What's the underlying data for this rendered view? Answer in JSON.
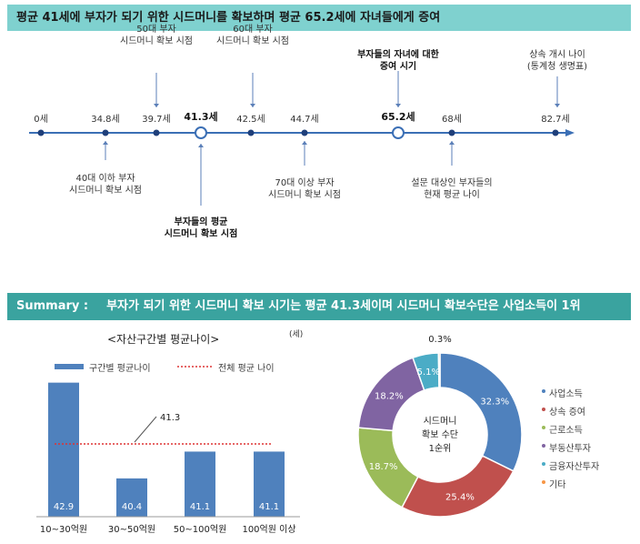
{
  "banner_top": "평균 41세에 부자가 되기 위한 시드머니를 확보하며 평균 65.2세에 자녀들에게 증여",
  "banner_summary": {
    "label": "Summary :",
    "text": "부자가 되기 위한 시드머니 확보 시기는 평균 41.3세이며 시드머니 확보수단은 사업소득이 1위"
  },
  "timeline": {
    "ticks": [
      {
        "label": "0세",
        "value": 0
      },
      {
        "label": "34.8세",
        "value": 34.8
      },
      {
        "label": "39.7세",
        "value": 39.7
      },
      {
        "label": "41.3세",
        "value": 41.3,
        "highlight": true
      },
      {
        "label": "42.5세",
        "value": 42.5
      },
      {
        "label": "44.7세",
        "value": 44.7
      },
      {
        "label": "65.2세",
        "value": 65.2,
        "highlight": true
      },
      {
        "label": "68세",
        "value": 68
      },
      {
        "label": "82.7세",
        "value": 82.7
      }
    ],
    "annotations": {
      "above_397": "50대 부자\n시드머니 확보 시점",
      "above_425": "60대 부자\n시드머니 확보 시점",
      "above_652": "부자들의 자녀에 대한\n증여 시기",
      "above_827": "상속 개시 나이\n(통계청 생명표)",
      "below_348": "40대 이하 부자\n시드머니 확보 시점",
      "below_413": "부자들의 평균\n시드머니 확보 시점",
      "below_447": "70대 이상 부자\n시드머니 확보 시점",
      "below_68": "설문 대상인 부자들의\n현재 평균 나이"
    },
    "colors": {
      "line": "#3b6fb5",
      "dot": "#1f3f7a"
    }
  },
  "chart_data": [
    {
      "type": "bar",
      "title": "<자산구간별 평균나이>",
      "unit": "(세)",
      "categories": [
        "10~30억원",
        "30~50억원",
        "50~100억원",
        "100억원 이상"
      ],
      "series": [
        {
          "name": "구간별 평균나이",
          "values": [
            42.9,
            40.4,
            41.1,
            41.1
          ]
        }
      ],
      "value_labels": [
        "42.9",
        "40.4",
        "41.1",
        "41.1"
      ],
      "reference_line": {
        "name": "전체 평균 나이",
        "value": 41.3,
        "label": "41.3"
      },
      "ylim": [
        39.4,
        43.2
      ],
      "colors": {
        "bar": "#4f81bd",
        "reference": "#d33"
      }
    },
    {
      "type": "pie",
      "center_label": "시드머니\n확보 수단\n1순위",
      "slices": [
        {
          "name": "사업소득",
          "value": 32.3,
          "label": "32.3%",
          "color": "#4f81bd"
        },
        {
          "name": "상속 증여",
          "value": 25.4,
          "label": "25.4%",
          "color": "#c0504d"
        },
        {
          "name": "근로소득",
          "value": 18.7,
          "label": "18.7%",
          "color": "#9bbb59"
        },
        {
          "name": "부동산투자",
          "value": 18.2,
          "label": "18.2%",
          "color": "#8064a2"
        },
        {
          "name": "금융자산투자",
          "value": 5.1,
          "label": "5.1%",
          "color": "#4bacc6"
        },
        {
          "name": "기타",
          "value": 0.3,
          "label": "0.3%",
          "color": "#f79646"
        }
      ]
    }
  ]
}
